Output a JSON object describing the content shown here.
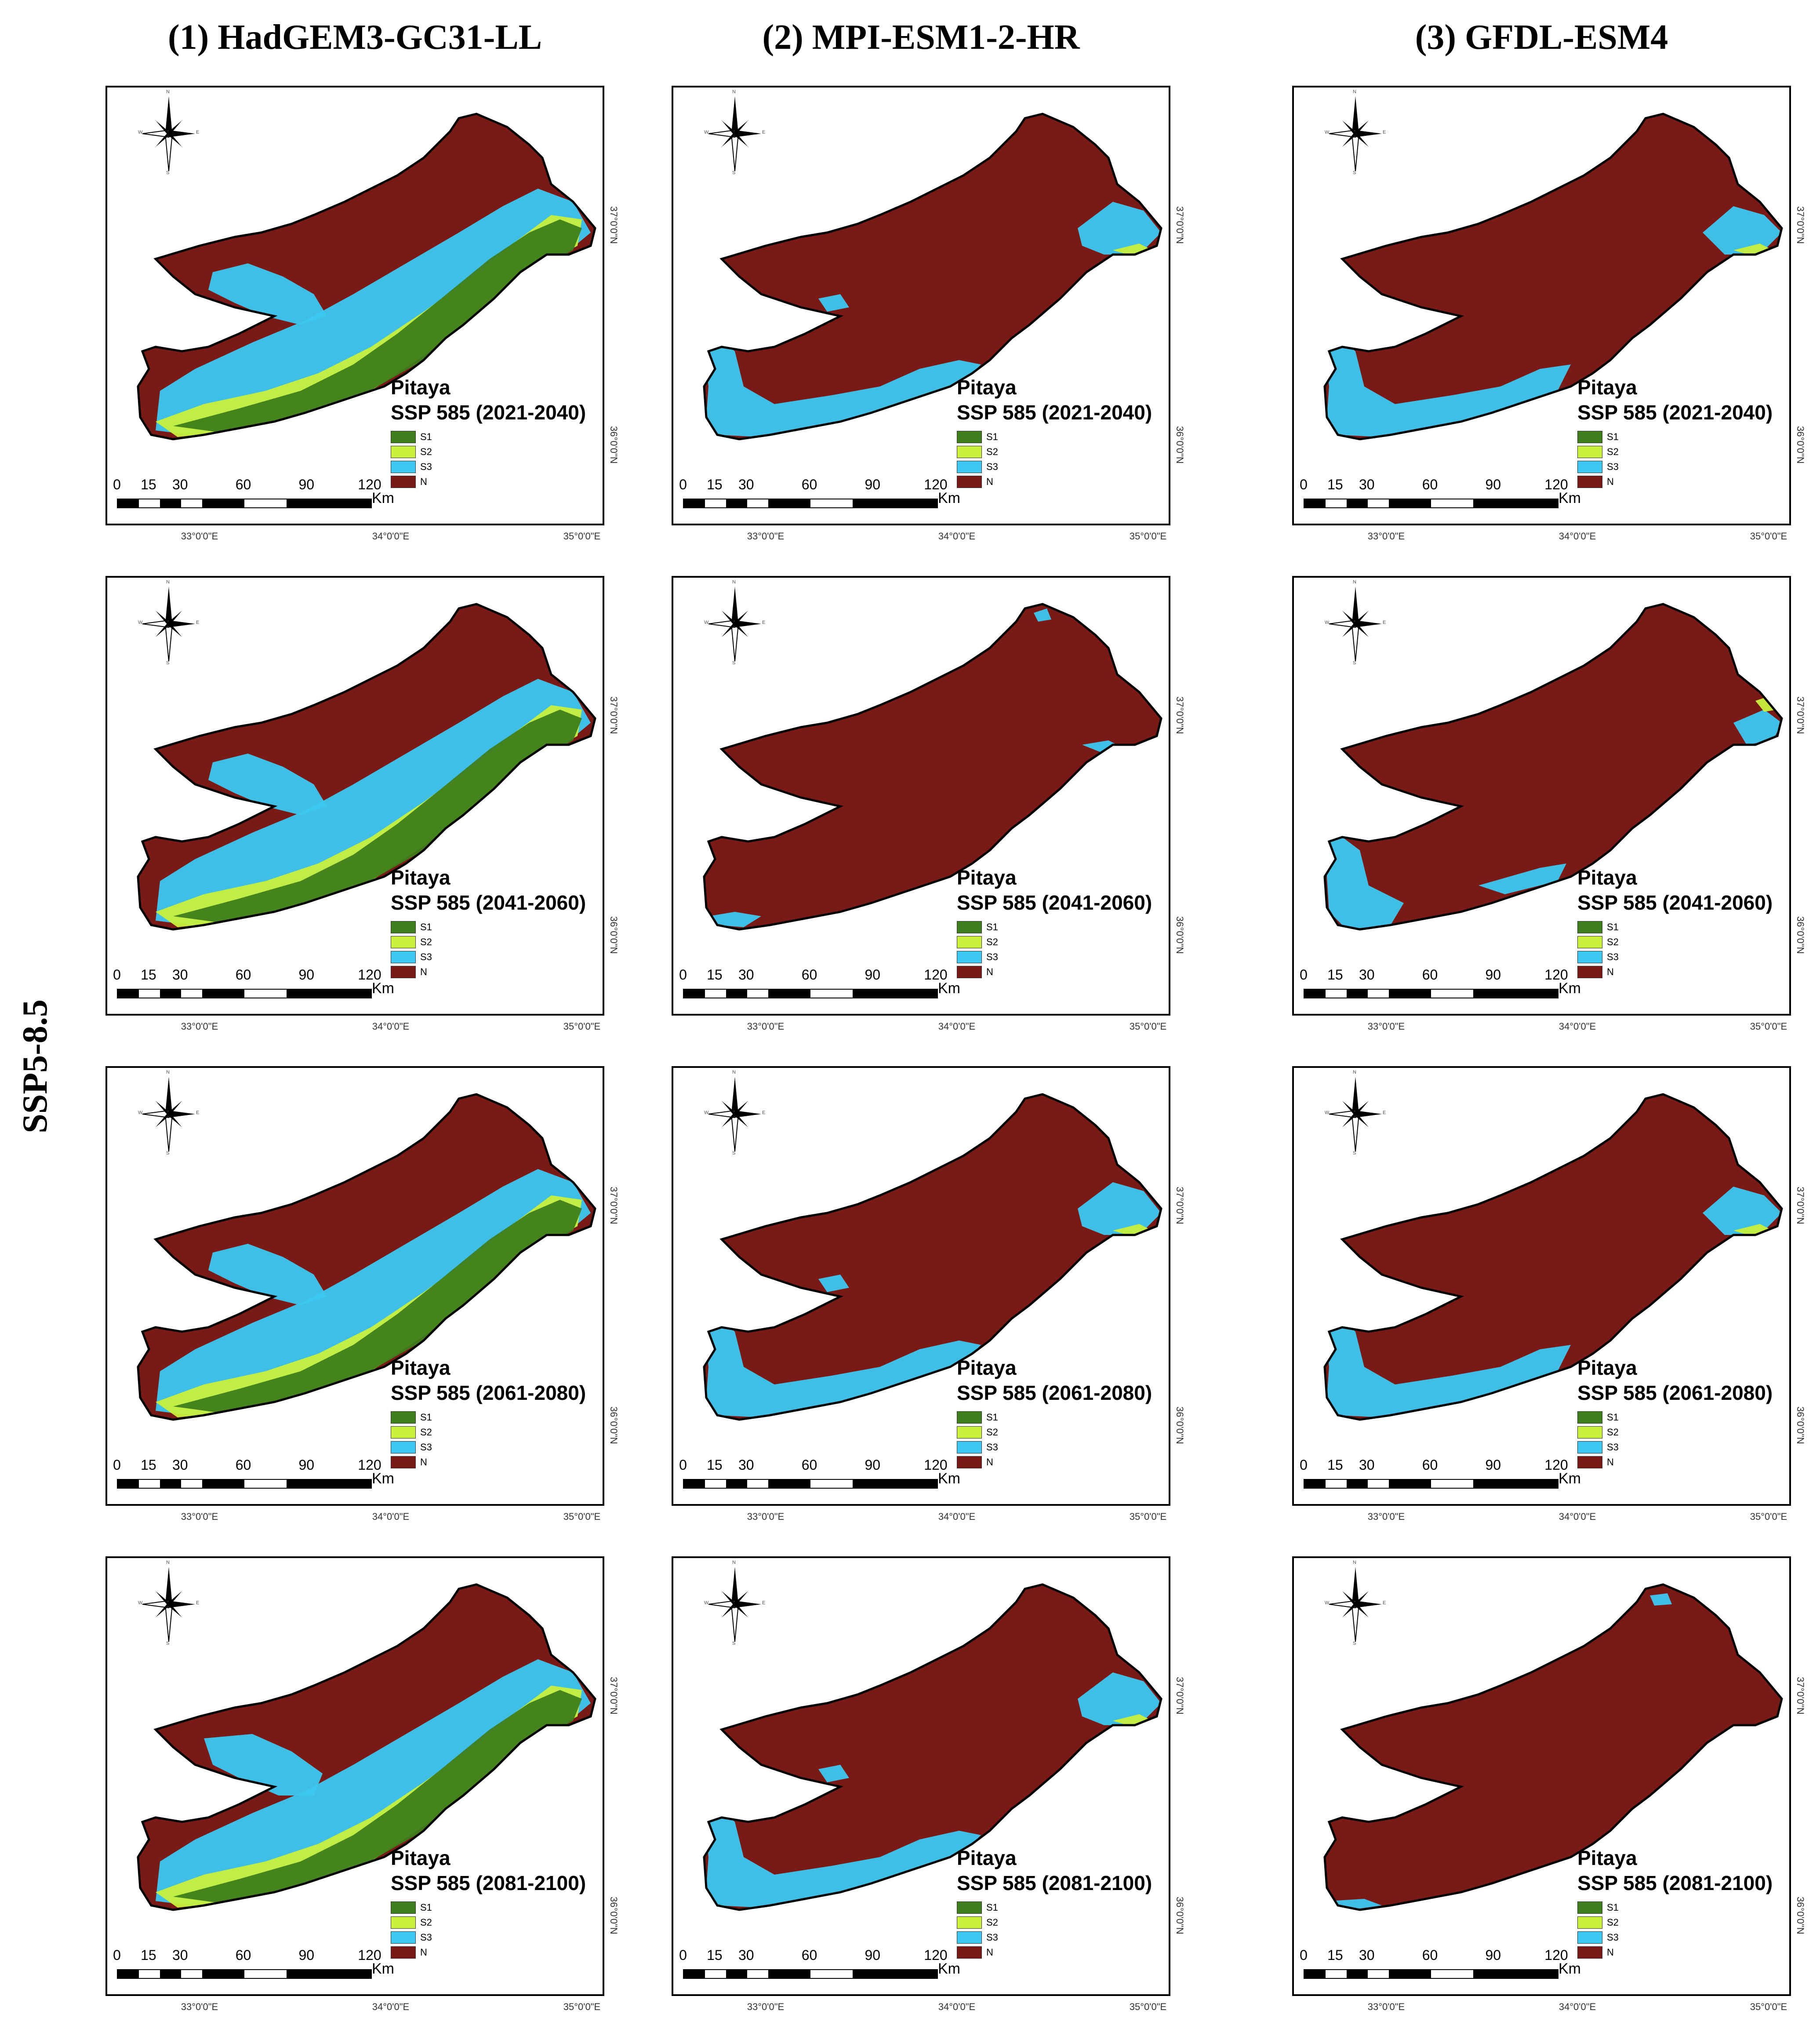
{
  "columns": [
    {
      "title": "(1) HadGEM3-GC31-LL"
    },
    {
      "title": "(2) MPI-ESM1-2-HR"
    },
    {
      "title": "(3) GFDL-ESM4"
    }
  ],
  "row_label": "SSP5-8.5",
  "crop": "Pitaya",
  "periods": [
    "SSP 585 (2021-2040)",
    "SSP 585 (2041-2060)",
    "SSP 585 (2061-2080)",
    "SSP 585 (2081-2100)"
  ],
  "legend": [
    {
      "label": "S1",
      "color": "#3e7d1b"
    },
    {
      "label": "S2",
      "color": "#c8f03c"
    },
    {
      "label": "S3",
      "color": "#3cc8f0"
    },
    {
      "label": "N",
      "color": "#7a1a16"
    }
  ],
  "scale_labels": [
    "0",
    "15",
    "30",
    "60",
    "90",
    "120"
  ],
  "scale_unit": "Km",
  "lon_ticks": [
    "33°0'0\"E",
    "34°0'0\"E",
    "35°0'0\"E"
  ],
  "lat_ticks": [
    "37°0'0\"N",
    "36°0'0\"N"
  ],
  "compass": {
    "n": "N",
    "s": "S",
    "e": "E",
    "w": "W"
  },
  "panels": [
    {
      "model": 0,
      "period": 0,
      "fractions": {
        "S1": 0.08,
        "S2": 0.12,
        "S3": 0.18,
        "N": 0.62
      }
    },
    {
      "model": 1,
      "period": 0,
      "fractions": {
        "S1": 0.0,
        "S2": 0.02,
        "S3": 0.14,
        "N": 0.84
      }
    },
    {
      "model": 2,
      "period": 0,
      "fractions": {
        "S1": 0.0,
        "S2": 0.02,
        "S3": 0.12,
        "N": 0.86
      }
    },
    {
      "model": 0,
      "period": 1,
      "fractions": {
        "S1": 0.09,
        "S2": 0.12,
        "S3": 0.14,
        "N": 0.65
      }
    },
    {
      "model": 1,
      "period": 1,
      "fractions": {
        "S1": 0.0,
        "S2": 0.0,
        "S3": 0.03,
        "N": 0.97
      }
    },
    {
      "model": 2,
      "period": 1,
      "fractions": {
        "S1": 0.0,
        "S2": 0.03,
        "S3": 0.09,
        "N": 0.88
      }
    },
    {
      "model": 0,
      "period": 2,
      "fractions": {
        "S1": 0.09,
        "S2": 0.12,
        "S3": 0.18,
        "N": 0.61
      }
    },
    {
      "model": 1,
      "period": 2,
      "fractions": {
        "S1": 0.0,
        "S2": 0.02,
        "S3": 0.14,
        "N": 0.84
      }
    },
    {
      "model": 2,
      "period": 2,
      "fractions": {
        "S1": 0.0,
        "S2": 0.02,
        "S3": 0.13,
        "N": 0.85
      }
    },
    {
      "model": 0,
      "period": 3,
      "fractions": {
        "S1": 0.05,
        "S2": 0.13,
        "S3": 0.17,
        "N": 0.65
      }
    },
    {
      "model": 1,
      "period": 3,
      "fractions": {
        "S1": 0.0,
        "S2": 0.03,
        "S3": 0.16,
        "N": 0.81
      }
    },
    {
      "model": 2,
      "period": 3,
      "fractions": {
        "S1": 0.0,
        "S2": 0.0,
        "S3": 0.04,
        "N": 0.96
      }
    }
  ]
}
